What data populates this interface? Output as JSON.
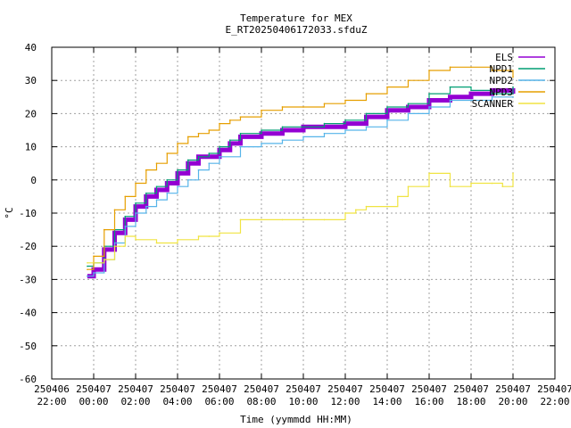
{
  "chart_data": {
    "type": "line",
    "title": "Temperature for MEX",
    "subtitle": "E_RT20250406172033.sfduZ",
    "xlabel": "Time (yymmdd HH:MM)",
    "ylabel": "°C",
    "xlim_hours": [
      -2,
      22
    ],
    "ylim": [
      -60,
      40
    ],
    "y_ticks": [
      -60,
      -50,
      -40,
      -30,
      -20,
      -10,
      0,
      10,
      20,
      30,
      40
    ],
    "x_ticks": [
      {
        "h": -2,
        "date": "250406",
        "time": "22:00"
      },
      {
        "h": 0,
        "date": "250407",
        "time": "00:00"
      },
      {
        "h": 2,
        "date": "250407",
        "time": "02:00"
      },
      {
        "h": 4,
        "date": "250407",
        "time": "04:00"
      },
      {
        "h": 6,
        "date": "250407",
        "time": "06:00"
      },
      {
        "h": 8,
        "date": "250407",
        "time": "08:00"
      },
      {
        "h": 10,
        "date": "250407",
        "time": "10:00"
      },
      {
        "h": 12,
        "date": "250407",
        "time": "12:00"
      },
      {
        "h": 14,
        "date": "250407",
        "time": "14:00"
      },
      {
        "h": 16,
        "date": "250407",
        "time": "16:00"
      },
      {
        "h": 18,
        "date": "250407",
        "time": "18:00"
      },
      {
        "h": 20,
        "date": "250407",
        "time": "20:00"
      },
      {
        "h": 22,
        "date": "250407",
        "time": "22:00"
      }
    ],
    "grid": true,
    "legend_position": "top-right",
    "series": [
      {
        "name": "ELS",
        "color": "#9400d3",
        "width": 5,
        "x": [
          -0.3,
          0,
          0.5,
          1,
          1.5,
          2,
          2.5,
          3,
          3.5,
          4,
          4.5,
          5,
          5.5,
          6,
          6.5,
          7,
          8,
          9,
          10,
          11,
          12,
          13,
          14,
          15,
          16,
          17,
          18,
          19,
          20
        ],
        "y": [
          -29,
          -27,
          -21,
          -16,
          -12,
          -8,
          -5,
          -3,
          -1,
          2,
          5,
          7,
          7,
          9,
          11,
          13,
          14,
          15,
          16,
          16,
          17,
          19,
          21,
          22,
          24,
          25,
          26,
          27,
          26
        ]
      },
      {
        "name": "NPD1",
        "color": "#009e73",
        "width": 1.2,
        "x": [
          -0.3,
          0,
          0.5,
          1,
          1.5,
          2,
          2.5,
          3,
          3.5,
          4,
          4.5,
          5,
          5.5,
          6,
          6.5,
          7,
          8,
          9,
          10,
          11,
          12,
          13,
          14,
          15,
          16,
          17,
          18,
          19,
          20
        ],
        "y": [
          -26,
          -25,
          -20,
          -15,
          -11,
          -7,
          -4,
          -2,
          0,
          3,
          6,
          7,
          8,
          10,
          12,
          14,
          15,
          16,
          16,
          17,
          18,
          20,
          22,
          23,
          26,
          28,
          27,
          26,
          28
        ]
      },
      {
        "name": "NPD2",
        "color": "#56b4e9",
        "width": 1.2,
        "x": [
          -0.3,
          0,
          0.5,
          1,
          1.5,
          2,
          2.5,
          3,
          3.5,
          4,
          4.5,
          5,
          5.5,
          6,
          7,
          8,
          9,
          10,
          11,
          12,
          13,
          14,
          15,
          16,
          17,
          18,
          19,
          20
        ],
        "y": [
          -29,
          -28,
          -24,
          -19,
          -14,
          -10,
          -8,
          -6,
          -4,
          -2,
          0,
          3,
          5,
          7,
          10,
          11,
          12,
          13,
          14,
          15,
          16,
          18,
          20,
          22,
          24,
          24,
          25,
          25
        ]
      },
      {
        "name": "NPD3",
        "color": "#e69f00",
        "width": 1.2,
        "x": [
          -0.3,
          0,
          0.5,
          1,
          1.5,
          2,
          2.5,
          3,
          3.5,
          4,
          4.5,
          5,
          5.5,
          6,
          6.5,
          7,
          8,
          9,
          10,
          11,
          12,
          13,
          14,
          15,
          16,
          17,
          18,
          19,
          20
        ],
        "y": [
          -27,
          -23,
          -15,
          -9,
          -5,
          -1,
          3,
          5,
          8,
          11,
          13,
          14,
          15,
          17,
          18,
          19,
          21,
          22,
          22,
          23,
          24,
          26,
          28,
          30,
          33,
          34,
          34,
          33,
          31
        ]
      },
      {
        "name": "SCANNER",
        "color": "#f0e442",
        "width": 1.2,
        "x": [
          -0.3,
          0.5,
          1,
          1.5,
          2,
          3,
          4,
          5,
          5.5,
          6,
          7,
          8,
          9,
          10,
          11,
          12,
          12.5,
          13,
          14,
          14.5,
          15,
          16,
          17,
          18,
          19,
          19.5,
          20
        ],
        "y": [
          -25,
          -24,
          -20,
          -17,
          -18,
          -19,
          -18,
          -17,
          -17,
          -16,
          -12,
          -12,
          -12,
          -12,
          -12,
          -10,
          -9,
          -8,
          -8,
          -5,
          -2,
          2,
          -2,
          -1,
          -1,
          -2,
          2
        ]
      }
    ]
  }
}
